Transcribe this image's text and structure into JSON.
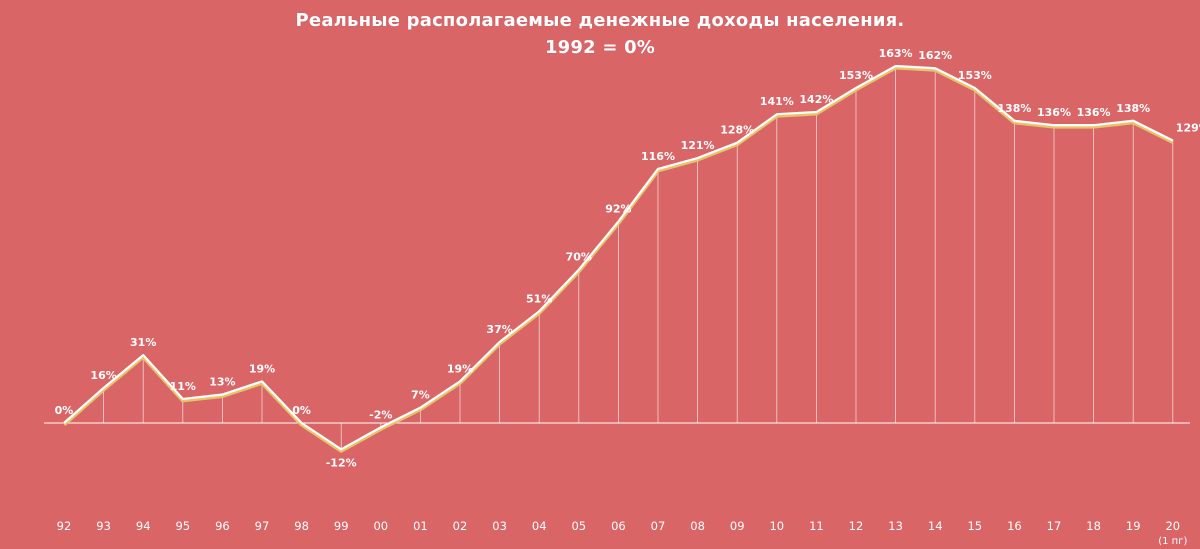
{
  "chart_data": {
    "type": "line",
    "title": "Реальные располагаемые денежные доходы населения.",
    "subtitle": "1992 = 0%",
    "categories": [
      "92",
      "93",
      "94",
      "95",
      "96",
      "97",
      "98",
      "99",
      "00",
      "01",
      "02",
      "03",
      "04",
      "05",
      "06",
      "07",
      "08",
      "09",
      "10",
      "11",
      "12",
      "13",
      "14",
      "15",
      "16",
      "17",
      "18",
      "19",
      "20"
    ],
    "category_notes": {
      "20": "(1 пг)"
    },
    "values": [
      0,
      16,
      31,
      11,
      13,
      19,
      0,
      -12,
      -2,
      7,
      19,
      37,
      51,
      70,
      92,
      116,
      121,
      128,
      141,
      142,
      153,
      163,
      162,
      153,
      138,
      136,
      136,
      138,
      129
    ],
    "data_labels": [
      "0%",
      "16%",
      "31%",
      "11%",
      "13%",
      "19%",
      "0%",
      "-12%",
      "-2%",
      "7%",
      "19%",
      "37%",
      "51%",
      "70%",
      "92%",
      "116%",
      "121%",
      "128%",
      "141%",
      "142%",
      "153%",
      "163%",
      "162%",
      "153%",
      "138%",
      "136%",
      "136%",
      "138%",
      "129%"
    ],
    "ylim": [
      -12,
      163
    ],
    "grid": false,
    "drop_lines": true,
    "colors": {
      "background": "#d96567",
      "line": "#ffffff",
      "line_shadow": "#e8c36a",
      "text": "#ffffff"
    }
  }
}
